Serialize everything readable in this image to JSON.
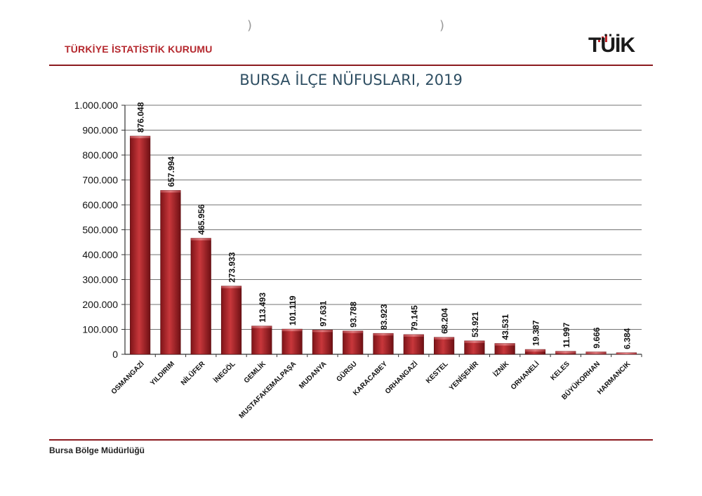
{
  "header": {
    "org_name": "TÜRKİYE İSTATİSTİK KURUMU",
    "logo_text": "TÜİK"
  },
  "footer": {
    "office": "Bursa Bölge Müdürlüğü"
  },
  "colors": {
    "accent": "#b5282e",
    "bar": "#a31e23",
    "title": "#2f4f63"
  },
  "chart_data": {
    "type": "bar",
    "title": "BURSA İLÇE NÜFUSLARI, 2019",
    "xlabel": "",
    "ylabel": "",
    "ylim": [
      0,
      1000000
    ],
    "yticks": [
      0,
      100000,
      200000,
      300000,
      400000,
      500000,
      600000,
      700000,
      800000,
      900000,
      1000000
    ],
    "ytick_labels": [
      "0",
      "100.000",
      "200.000",
      "300.000",
      "400.000",
      "500.000",
      "600.000",
      "700.000",
      "800.000",
      "900.000",
      "1.000.000"
    ],
    "grid": true,
    "categories": [
      "OSMANGAZİ",
      "YILDIRIM",
      "NİLÜFER",
      "İNEGÖL",
      "GEMLİK",
      "MUSTAFAKEMALPAŞA",
      "MUDANYA",
      "GÜRSU",
      "KARACABEY",
      "ORHANGAZİ",
      "KESTEL",
      "YENİŞEHİR",
      "İZNİK",
      "ORHANELİ",
      "KELES",
      "BÜYÜKORHAN",
      "HARMANCIK"
    ],
    "values": [
      876048,
      657994,
      465956,
      273933,
      113493,
      101119,
      97631,
      93788,
      83923,
      79145,
      68204,
      53921,
      43531,
      19387,
      11997,
      9666,
      6384
    ],
    "value_labels": [
      "876.048",
      "657.994",
      "465.956",
      "273.933",
      "113.493",
      "101.119",
      "97.631",
      "93.788",
      "83.923",
      "79.145",
      "68.204",
      "53.921",
      "43.531",
      "19.387",
      "11.997",
      "9.666",
      "6.384"
    ]
  }
}
